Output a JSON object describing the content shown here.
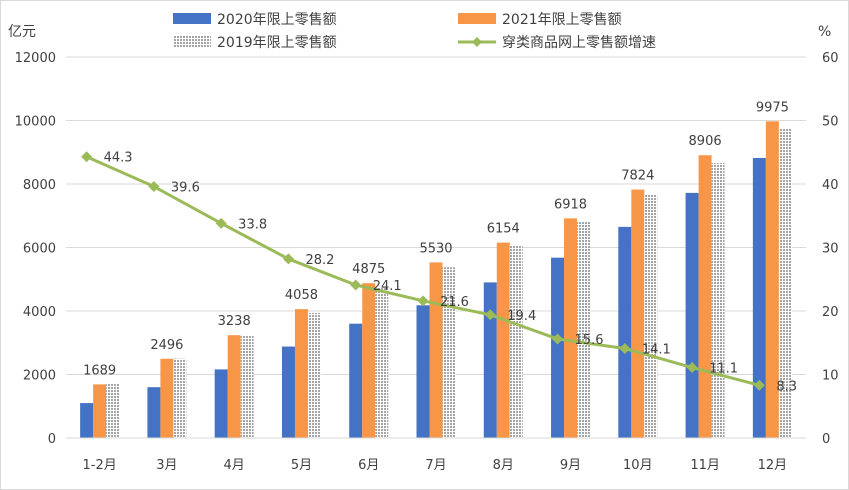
{
  "chart_data": {
    "type": "bar",
    "categories": [
      "1-2月",
      "3月",
      "4月",
      "5月",
      "6月",
      "7月",
      "8月",
      "9月",
      "10月",
      "11月",
      "12月"
    ],
    "y_left": {
      "unit": "亿元",
      "min": 0,
      "max": 12000,
      "ticks": [
        "0",
        "2000",
        "4000",
        "6000",
        "8000",
        "10000",
        "12000"
      ]
    },
    "y_right": {
      "unit": "%",
      "min": 0,
      "max": 60,
      "ticks": [
        "0",
        "10",
        "20",
        "30",
        "40",
        "50",
        "60"
      ]
    },
    "series": [
      {
        "name": "2020年限上零售额",
        "kind": "bar",
        "axis": "left",
        "color": "#4472C4",
        "pattern": "solid",
        "values": [
          1100,
          1600,
          2160,
          2880,
          3600,
          4180,
          4900,
          5680,
          6650,
          7720,
          8820
        ]
      },
      {
        "name": "2021年限上零售额",
        "kind": "bar",
        "axis": "left",
        "color": "#F79646",
        "pattern": "solid",
        "values": [
          1689,
          2496,
          3238,
          4058,
          4875,
          5530,
          6154,
          6918,
          7824,
          8906,
          9975
        ],
        "labels": [
          "1689",
          "2496",
          "3238",
          "4058",
          "4875",
          "5530",
          "6154",
          "6918",
          "7824",
          "8906",
          "9975"
        ]
      },
      {
        "name": "2019年限上零售额",
        "kind": "bar",
        "axis": "left",
        "color": "#A5A5A5",
        "pattern": "dotted",
        "values": [
          1720,
          2500,
          3240,
          3940,
          4750,
          5380,
          6060,
          6820,
          7660,
          8660,
          9760
        ]
      },
      {
        "name": "穿类商品网上零售额增速",
        "kind": "line",
        "axis": "right",
        "color": "#9BBB59",
        "values": [
          44.3,
          39.6,
          33.8,
          28.2,
          24.1,
          21.6,
          19.4,
          15.6,
          14.1,
          11.1,
          8.3
        ],
        "labels": [
          "44.3",
          "39.6",
          "33.8",
          "28.2",
          "24.1",
          "21.6",
          "19.4",
          "15.6",
          "14.1",
          "11.1",
          "8.3"
        ]
      }
    ],
    "grid": true,
    "legend_position": "top"
  }
}
